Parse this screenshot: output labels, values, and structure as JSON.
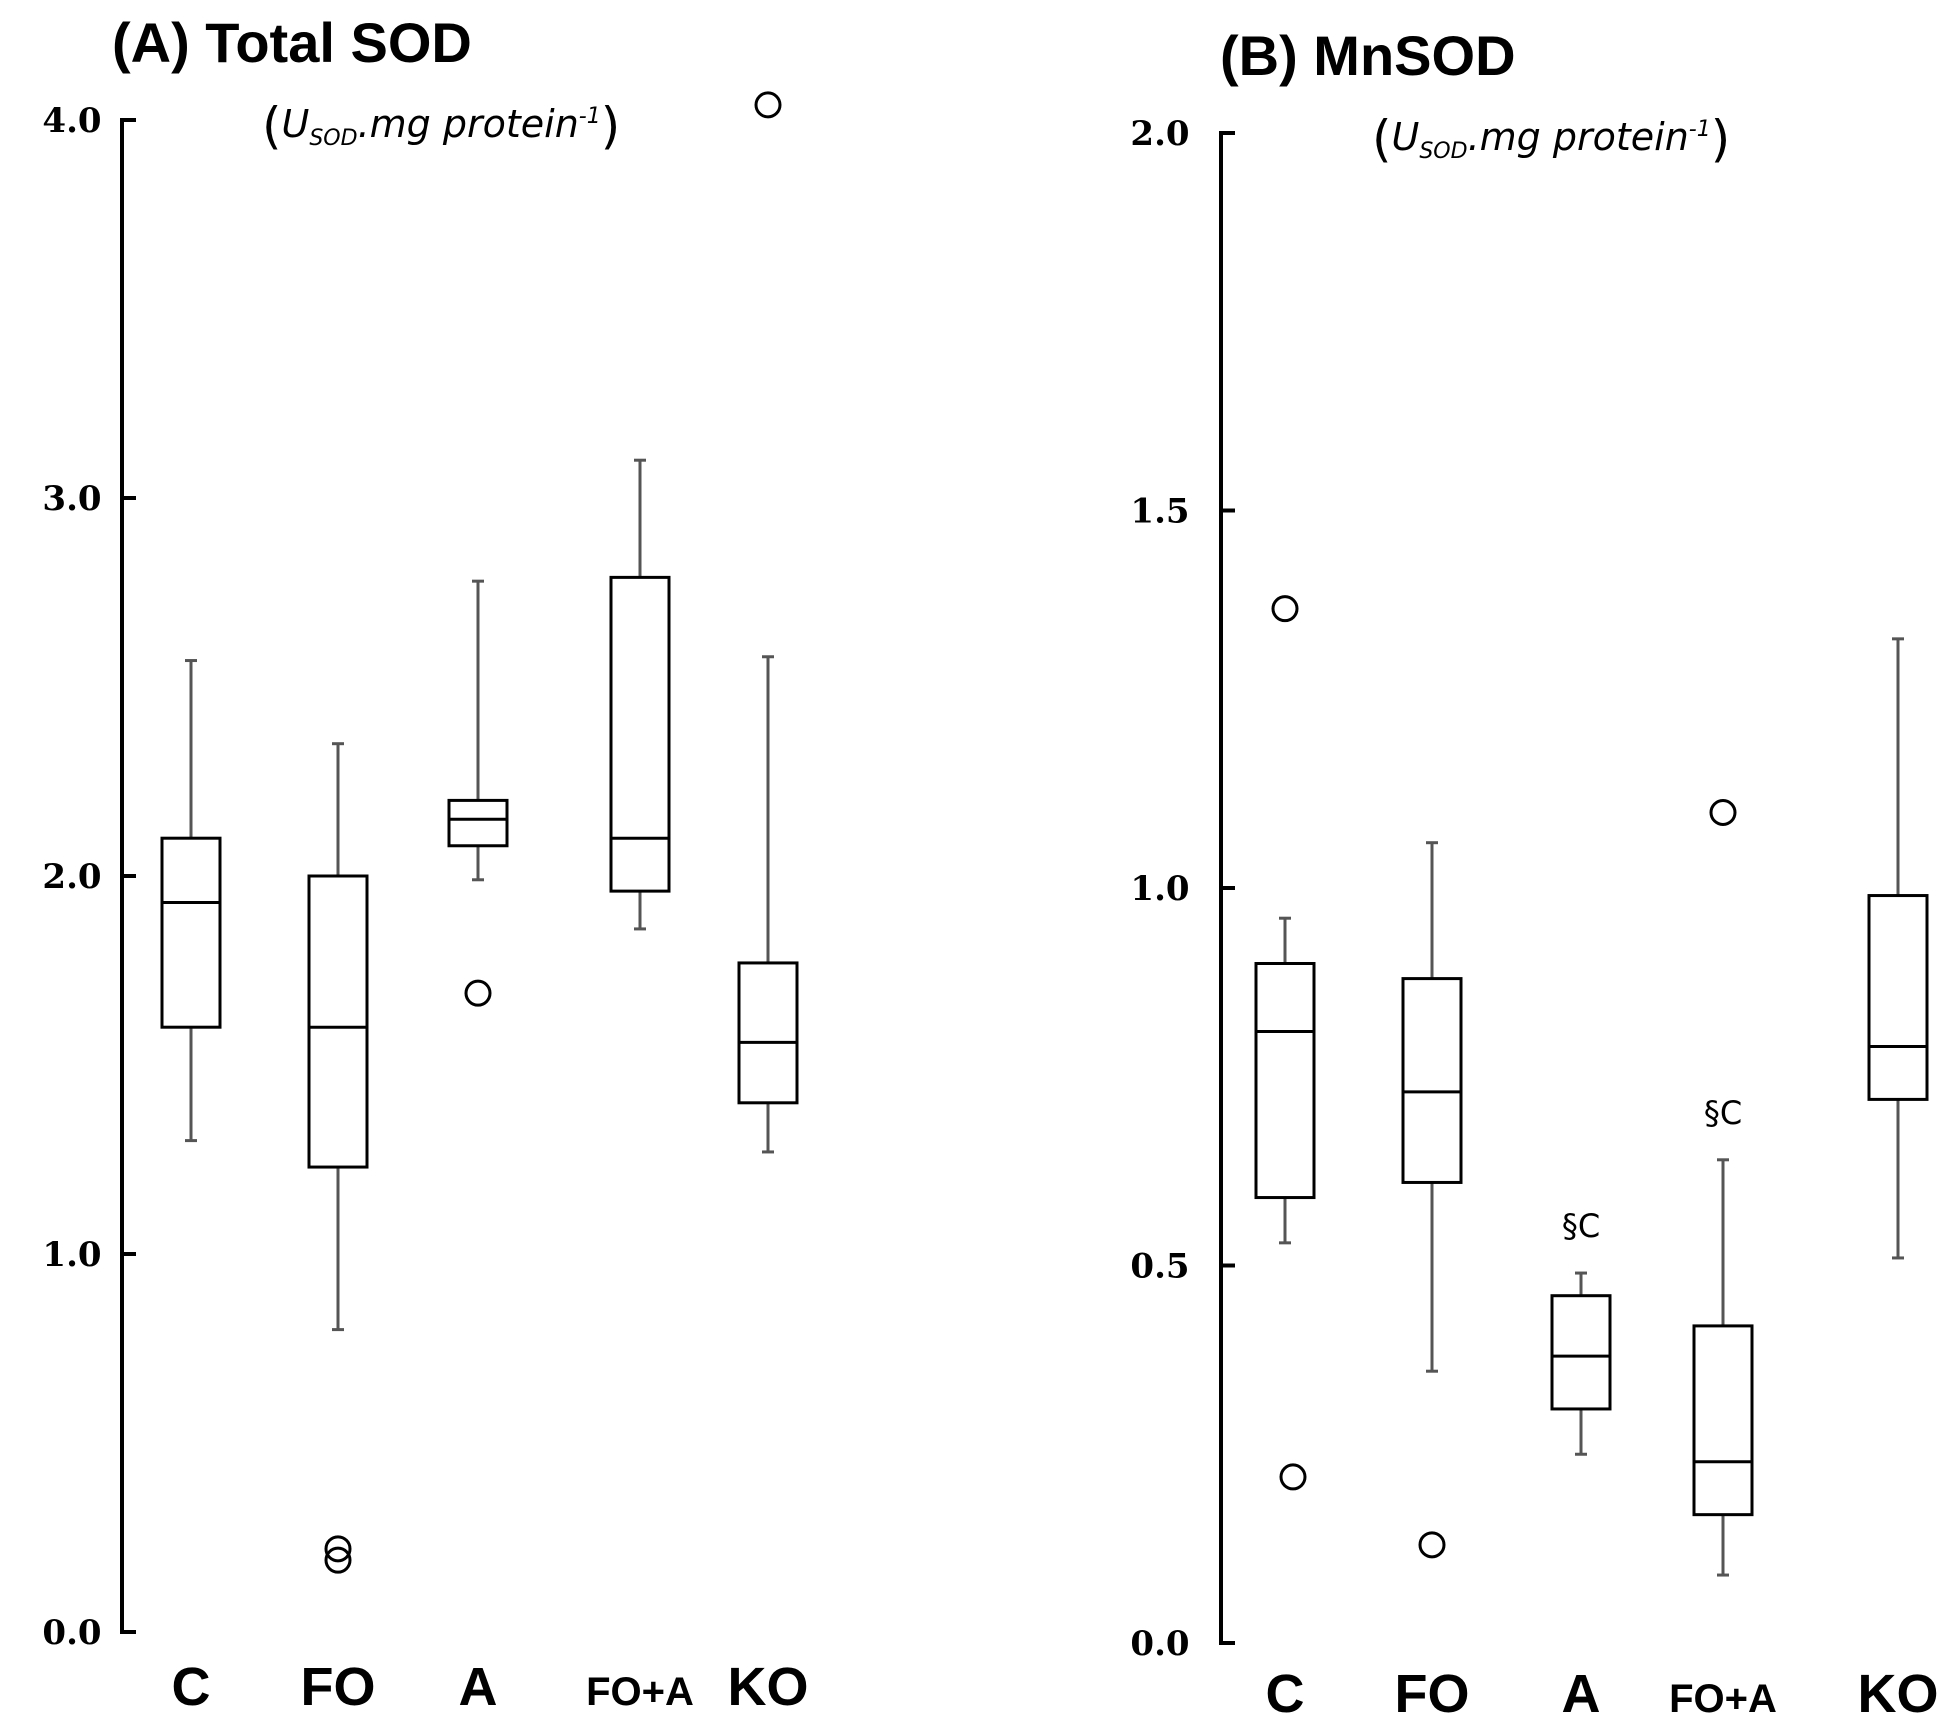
{
  "chart_data": [
    {
      "type": "boxplot",
      "title": "(A) Total SOD",
      "units": {
        "prefix": "(",
        "main": "U",
        "sub": "SOD",
        "mid": ".mg protein",
        "sup": "-1",
        "suffix": ")"
      },
      "ylim": [
        0,
        4.0
      ],
      "yticks": [
        "0.0",
        "1.0",
        "2.0",
        "3.0",
        "4.0"
      ],
      "categories": [
        "C",
        "FO",
        "A",
        "FO+A",
        "KO"
      ],
      "boxes": [
        {
          "min": 1.3,
          "q1": 1.6,
          "median": 1.93,
          "q3": 2.1,
          "max": 2.57,
          "outliers": []
        },
        {
          "min": 0.8,
          "q1": 1.23,
          "median": 1.6,
          "q3": 2.0,
          "max": 2.35,
          "outliers": [
            0.22,
            0.19
          ]
        },
        {
          "min": 1.99,
          "q1": 2.08,
          "median": 2.15,
          "q3": 2.2,
          "max": 2.78,
          "outliers": [
            1.69
          ]
        },
        {
          "min": 1.86,
          "q1": 1.96,
          "median": 2.1,
          "q3": 2.79,
          "max": 3.1,
          "outliers": []
        },
        {
          "min": 1.27,
          "q1": 1.4,
          "median": 1.56,
          "q3": 1.77,
          "max": 2.58,
          "outliers": [
            4.04
          ]
        }
      ],
      "annotations": [
        "",
        "",
        "",
        "",
        ""
      ]
    },
    {
      "type": "boxplot",
      "title": "(B) MnSOD",
      "units": {
        "prefix": "(",
        "main": "U",
        "sub": "SOD",
        "mid": ".mg protein",
        "sup": "-1",
        "suffix": ")"
      },
      "ylim": [
        0,
        2.0
      ],
      "yticks": [
        "0.0",
        "0.5",
        "1.0",
        "1.5",
        "2.0"
      ],
      "categories": [
        "C",
        "FO",
        "A",
        "FO+A",
        "KO"
      ],
      "boxes": [
        {
          "min": 0.53,
          "q1": 0.59,
          "median": 0.81,
          "q3": 0.9,
          "max": 0.96,
          "outliers": [
            1.37,
            0.22
          ]
        },
        {
          "min": 0.36,
          "q1": 0.61,
          "median": 0.73,
          "q3": 0.88,
          "max": 1.06,
          "outliers": [
            0.13
          ]
        },
        {
          "min": 0.25,
          "q1": 0.31,
          "median": 0.38,
          "q3": 0.46,
          "max": 0.49,
          "outliers": []
        },
        {
          "min": 0.09,
          "q1": 0.17,
          "median": 0.24,
          "q3": 0.42,
          "max": 0.64,
          "outliers": [
            1.1
          ]
        },
        {
          "min": 0.51,
          "q1": 0.72,
          "median": 0.79,
          "q3": 0.99,
          "max": 1.33,
          "outliers": []
        }
      ],
      "annotations": [
        "",
        "",
        "§C",
        "§C",
        ""
      ]
    }
  ]
}
